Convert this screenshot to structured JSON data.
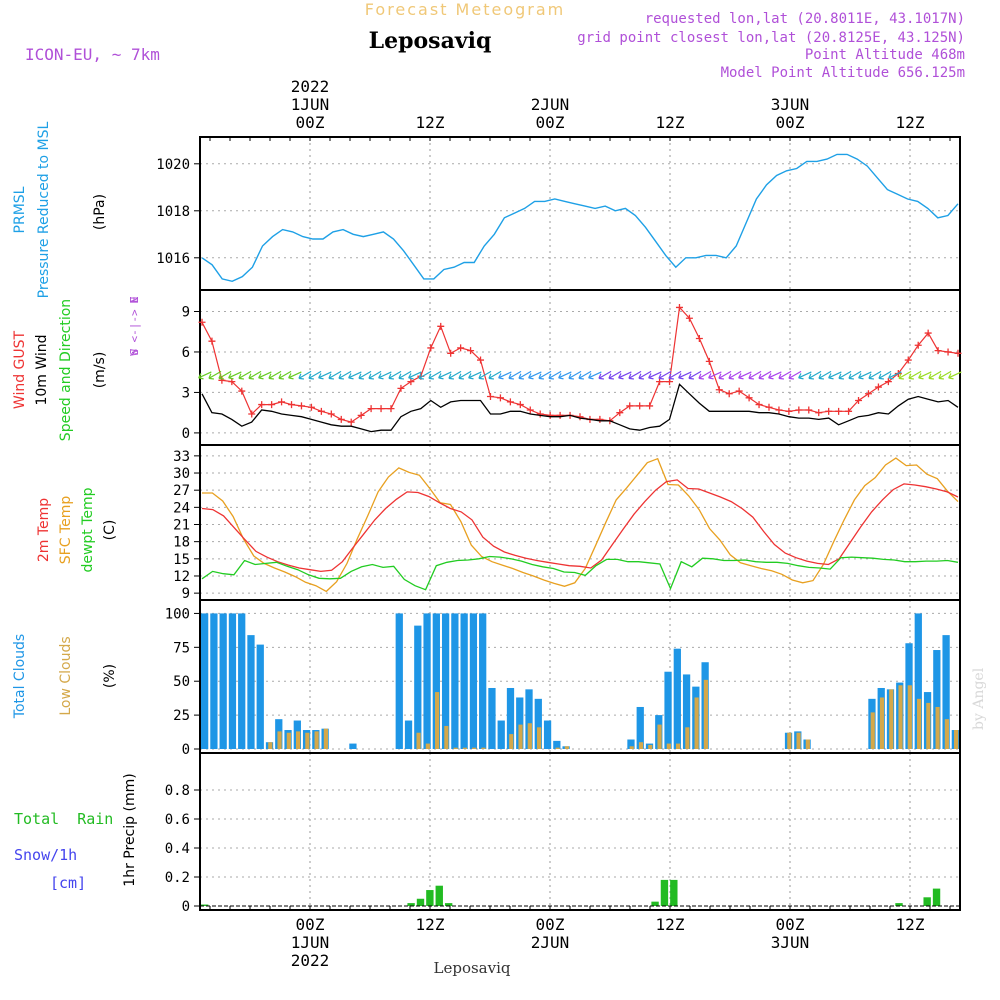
{
  "header": {
    "forecast_title": "Forecast Meteogram",
    "location": "Leposaviq",
    "model": "ICON-EU, ~ 7km",
    "requested": "requested lon,lat (20.8011E, 43.1017N)",
    "gridpoint": "grid point closest lon,lat (20.8125E, 43.125N)",
    "point_alt": "Point Altitude 468m",
    "model_alt": "Model Point Altitude 656.125m",
    "credit": "by Angel",
    "bottom_location": "Leposaviq"
  },
  "colors": {
    "pressure": "#1ea0e6",
    "gust": "#ee3333",
    "wind": "#000000",
    "temp2m": "#ee3333",
    "sfctemp": "#e8a020",
    "dewpt": "#22cc22",
    "total_clouds": "#1e96e6",
    "low_clouds": "#d4a84a",
    "rain": "#22bb22",
    "snow": "#4444ee",
    "label_purple": "#b050d8"
  },
  "chart_data": [
    {
      "type": "line",
      "panel": "pressure",
      "ylabel_lines": [
        "PRMSL",
        "Pressure Reduced to MSL",
        "(hPa)"
      ],
      "yticks": [
        1016,
        1018,
        1020
      ],
      "ylim": [
        1014.8,
        1020.8
      ],
      "x_step_hours": 2,
      "x_start_hour": -18,
      "series": [
        {
          "name": "PRMSL",
          "values": [
            1016.0,
            1015.7,
            1015.1,
            1015.0,
            1015.2,
            1015.6,
            1016.5,
            1016.9,
            1017.2,
            1017.1,
            1016.9,
            1016.8,
            1016.8,
            1017.1,
            1017.2,
            1017.0,
            1016.9,
            1017.0,
            1017.1,
            1016.8,
            1016.3,
            1015.7,
            1015.1,
            1015.1,
            1015.5,
            1015.6,
            1015.8,
            1015.8,
            1016.5,
            1017.0,
            1017.7,
            1017.9,
            1018.1,
            1018.4,
            1018.4,
            1018.5,
            1018.4,
            1018.3,
            1018.2,
            1018.1,
            1018.2,
            1018.0,
            1018.1,
            1017.8,
            1017.3,
            1016.7,
            1016.1,
            1015.6,
            1016.0,
            1016.0,
            1016.1,
            1016.1,
            1016.0,
            1016.5,
            1017.5,
            1018.5,
            1019.1,
            1019.5,
            1019.7,
            1019.8,
            1020.1,
            1020.1,
            1020.2,
            1020.4,
            1020.4,
            1020.2,
            1019.9,
            1019.4,
            1018.9,
            1018.7,
            1018.5,
            1018.4,
            1018.1,
            1017.7,
            1017.8,
            1018.3
          ]
        }
      ]
    },
    {
      "type": "line",
      "panel": "wind",
      "ylabel_lines": [
        "Wind GUST",
        "10m Wind",
        "Speed and Direction",
        "(m/s)"
      ],
      "compass": [
        "N",
        "W <-|-> E",
        "S"
      ],
      "yticks": [
        0,
        3,
        6,
        9
      ],
      "ylim": [
        -0.6,
        10
      ],
      "series": [
        {
          "name": "Wind GUST",
          "values": [
            8.2,
            6.8,
            3.9,
            3.8,
            3.1,
            1.4,
            2.1,
            2.1,
            2.3,
            2.1,
            2.0,
            1.9,
            1.6,
            1.4,
            1.0,
            0.8,
            1.3,
            1.8,
            1.8,
            1.8,
            3.3,
            3.8,
            4.2,
            6.3,
            7.9,
            5.9,
            6.3,
            6.1,
            5.4,
            2.7,
            2.6,
            2.3,
            2.1,
            1.7,
            1.4,
            1.3,
            1.3,
            1.3,
            1.2,
            1.0,
            1.0,
            0.9,
            1.5,
            2.0,
            2.0,
            2.0,
            3.8,
            3.8,
            9.3,
            8.5,
            7.0,
            5.3,
            3.2,
            2.9,
            3.1,
            2.6,
            2.1,
            1.9,
            1.7,
            1.6,
            1.7,
            1.7,
            1.5,
            1.6,
            1.6,
            1.6,
            2.4,
            2.9,
            3.4,
            3.8,
            4.4,
            5.4,
            6.5,
            7.4,
            6.1,
            6.0,
            5.9
          ]
        },
        {
          "name": "10m Wind",
          "values": [
            2.9,
            1.5,
            1.4,
            1.0,
            0.5,
            0.8,
            1.7,
            1.6,
            1.4,
            1.3,
            1.2,
            1.0,
            0.8,
            0.6,
            0.5,
            0.5,
            0.3,
            0.1,
            0.2,
            0.2,
            1.2,
            1.6,
            1.8,
            2.4,
            1.9,
            2.3,
            2.4,
            2.4,
            2.4,
            1.4,
            1.4,
            1.6,
            1.6,
            1.4,
            1.3,
            1.2,
            1.2,
            1.3,
            1.1,
            1.0,
            0.9,
            0.9,
            0.6,
            0.3,
            0.2,
            0.4,
            0.5,
            1.0,
            3.6,
            2.9,
            2.2,
            1.6,
            1.6,
            1.6,
            1.6,
            1.6,
            1.5,
            1.5,
            1.4,
            1.2,
            1.1,
            1.1,
            1.0,
            1.1,
            0.6,
            0.9,
            1.2,
            1.3,
            1.5,
            1.4,
            2.0,
            2.5,
            2.7,
            2.5,
            2.3,
            2.4,
            1.9
          ]
        }
      ]
    },
    {
      "type": "line",
      "panel": "temperature",
      "ylabel_lines": [
        "2m Temp",
        "SFC Temp",
        "dewpt Temp",
        "(C)"
      ],
      "yticks": [
        9,
        12,
        15,
        18,
        21,
        24,
        27,
        30,
        33
      ],
      "ylim": [
        8.5,
        33.5
      ],
      "series": [
        {
          "name": "2m Temp",
          "values": [
            23.8,
            23.6,
            22.5,
            20.4,
            18.3,
            16.3,
            15.3,
            14.5,
            13.9,
            13.4,
            13.1,
            12.8,
            13.0,
            14.5,
            17.0,
            19.4,
            21.8,
            23.8,
            25.4,
            26.7,
            26.6,
            25.9,
            24.8,
            23.8,
            23.2,
            21.8,
            18.8,
            17.2,
            16.2,
            15.6,
            15.1,
            14.7,
            14.4,
            14.1,
            13.8,
            13.7,
            13.4,
            14.8,
            17.5,
            20.2,
            22.8,
            25.0,
            27.0,
            28.5,
            28.8,
            27.3,
            27.2,
            26.5,
            25.8,
            25.0,
            23.8,
            22.3,
            19.8,
            17.5,
            16.0,
            15.2,
            14.6,
            14.2,
            14.0,
            15.0,
            17.8,
            20.6,
            23.2,
            25.3,
            27.1,
            28.1,
            27.9,
            27.6,
            27.2,
            26.7,
            25.8
          ]
        },
        {
          "name": "SFC Temp",
          "values": [
            26.5,
            26.5,
            25.1,
            22.4,
            18.5,
            15.5,
            14.2,
            13.4,
            12.7,
            11.9,
            10.9,
            10.3,
            9.3,
            11.0,
            14.2,
            18.5,
            22.5,
            26.7,
            29.3,
            30.9,
            30.1,
            29.6,
            27.3,
            24.8,
            24.5,
            21.5,
            17.4,
            15.4,
            14.5,
            13.9,
            13.3,
            12.6,
            12.0,
            11.3,
            10.7,
            10.2,
            10.8,
            13.3,
            17.3,
            21.4,
            25.3,
            27.4,
            29.6,
            31.8,
            32.5,
            28.0,
            27.9,
            26.0,
            23.6,
            20.3,
            18.3,
            15.7,
            14.3,
            13.8,
            13.3,
            12.9,
            12.3,
            11.3,
            10.8,
            11.2,
            14.0,
            18.0,
            21.8,
            25.3,
            27.8,
            29.2,
            31.4,
            32.6,
            31.3,
            31.4,
            29.8,
            29.0,
            26.8,
            25.0
          ]
        },
        {
          "name": "dewpt Temp",
          "values": [
            11.5,
            12.8,
            12.4,
            12.2,
            14.7,
            14.0,
            14.2,
            14.4,
            13.7,
            13.1,
            12.2,
            11.6,
            11.5,
            11.6,
            12.8,
            13.6,
            14.0,
            13.5,
            13.7,
            11.4,
            10.3,
            9.6,
            13.8,
            14.4,
            14.7,
            14.8,
            15.0,
            15.4,
            15.3,
            15.0,
            14.6,
            14.0,
            13.6,
            13.3,
            12.7,
            12.6,
            12.1,
            13.8,
            14.9,
            14.9,
            14.5,
            14.5,
            14.3,
            14.1,
            9.8,
            14.5,
            13.6,
            15.1,
            15.0,
            14.7,
            14.7,
            14.8,
            14.5,
            14.4,
            14.4,
            14.2,
            13.8,
            13.5,
            13.4,
            13.2,
            15.2,
            15.3,
            15.2,
            15.1,
            14.9,
            14.8,
            14.5,
            14.5,
            14.6,
            14.6,
            14.7,
            14.4
          ]
        }
      ]
    },
    {
      "type": "bar",
      "panel": "clouds",
      "ylabel_lines": [
        "Total Clouds",
        "Low Clouds",
        "(%)"
      ],
      "yticks": [
        0,
        25,
        50,
        75,
        100
      ],
      "ylim": [
        0,
        104
      ],
      "series": [
        {
          "name": "Total Clouds",
          "values": [
            100,
            100,
            100,
            100,
            100,
            84,
            77,
            5,
            22,
            14,
            21,
            14,
            14,
            15,
            0,
            0,
            4,
            0,
            0,
            0,
            0,
            100,
            21,
            91,
            100,
            100,
            100,
            100,
            100,
            100,
            100,
            45,
            21,
            45,
            38,
            44,
            37,
            21,
            6,
            2,
            0,
            0,
            0,
            0,
            0,
            0,
            7,
            31,
            4,
            25,
            57,
            74,
            55,
            46,
            64,
            0,
            0,
            0,
            0,
            0,
            0,
            0,
            0,
            12,
            13,
            7,
            0,
            0,
            0,
            0,
            0,
            0,
            37,
            45,
            44,
            49,
            78,
            100,
            42,
            73,
            84,
            14
          ]
        },
        {
          "name": "Low Clouds",
          "values": [
            0,
            0,
            0,
            0,
            0,
            0,
            0,
            5,
            13,
            12,
            13,
            12,
            13,
            15,
            0,
            0,
            0,
            0,
            0,
            0,
            0,
            0,
            0,
            12,
            4,
            42,
            17,
            1,
            1,
            1,
            1,
            0,
            0,
            11,
            18,
            19,
            16,
            0,
            1,
            2,
            0,
            0,
            0,
            0,
            0,
            0,
            2,
            5,
            3,
            18,
            4,
            4,
            16,
            38,
            51,
            0,
            0,
            0,
            0,
            0,
            0,
            0,
            0,
            12,
            12,
            7,
            0,
            0,
            0,
            0,
            0,
            0,
            27,
            38,
            44,
            47,
            47,
            37,
            34,
            31,
            22,
            14
          ]
        }
      ]
    },
    {
      "type": "bar",
      "panel": "precipitation",
      "ylabel_lines": [
        "Total  Rain",
        "Snow/1h",
        "[cm]",
        "1hr Precip (mm)"
      ],
      "yticks": [
        0,
        0.2,
        0.4,
        0.6,
        0.8
      ],
      "ylim": [
        0,
        1.0
      ],
      "series": [
        {
          "name": "Total Rain",
          "values": [
            0.01,
            0,
            0,
            0,
            0,
            0,
            0,
            0,
            0,
            0,
            0,
            0,
            0,
            0,
            0,
            0,
            0,
            0,
            0,
            0,
            0,
            0,
            0.02,
            0.05,
            0.11,
            0.14,
            0.02,
            0,
            0,
            0,
            0,
            0,
            0,
            0,
            0,
            0,
            0,
            0,
            0,
            0,
            0,
            0,
            0,
            0,
            0,
            0,
            0,
            0,
            0.03,
            0.18,
            0.18,
            0,
            0,
            0,
            0,
            0,
            0,
            0,
            0,
            0,
            0,
            0,
            0,
            0,
            0,
            0,
            0,
            0,
            0,
            0,
            0,
            0,
            0,
            0,
            0.02,
            0,
            0,
            0.06,
            0.12,
            0,
            0
          ]
        }
      ]
    }
  ],
  "time_axis": {
    "labels_top": [
      {
        "lines": [
          "2022",
          "1JUN",
          "00Z"
        ],
        "hour": 0
      },
      {
        "lines": [
          "12Z"
        ],
        "hour": 12
      },
      {
        "lines": [
          "2JUN",
          "00Z"
        ],
        "hour": 24
      },
      {
        "lines": [
          "12Z"
        ],
        "hour": 36
      },
      {
        "lines": [
          "3JUN",
          "00Z"
        ],
        "hour": 48
      },
      {
        "lines": [
          "12Z"
        ],
        "hour": 60
      }
    ],
    "labels_bottom": [
      {
        "lines": [
          "00Z",
          "1JUN",
          "2022"
        ],
        "hour": 0
      },
      {
        "lines": [
          "12Z"
        ],
        "hour": 12
      },
      {
        "lines": [
          "00Z",
          "2JUN"
        ],
        "hour": 24
      },
      {
        "lines": [
          "12Z"
        ],
        "hour": 36
      },
      {
        "lines": [
          "00Z",
          "3JUN"
        ],
        "hour": 48
      },
      {
        "lines": [
          "12Z"
        ],
        "hour": 60
      }
    ],
    "hour_start": -11,
    "hour_end": 65
  }
}
